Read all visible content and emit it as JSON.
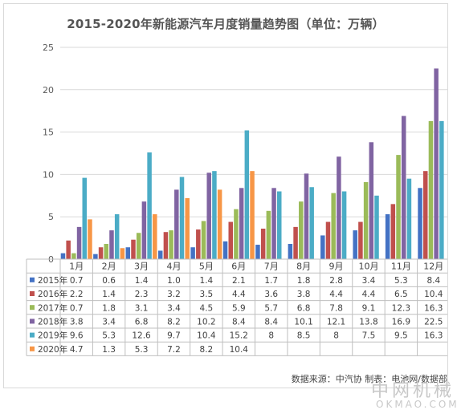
{
  "chart_data": {
    "type": "bar",
    "title": "2015-2020年新能源汽车月度销量趋势图（单位：万辆）",
    "xlabel": "",
    "ylabel": "",
    "ylim": [
      0,
      25
    ],
    "yticks": [
      0,
      5,
      10,
      15,
      20,
      25
    ],
    "grid": true,
    "legend": "table-below",
    "categories": [
      "1月",
      "2月",
      "3月",
      "4月",
      "5月",
      "6月",
      "7月",
      "8月",
      "9月",
      "10月",
      "11月",
      "12月"
    ],
    "series": [
      {
        "name": "2015年",
        "color": "#4472c4",
        "values": [
          0.7,
          0.6,
          1.4,
          1.0,
          1.4,
          2.1,
          1.7,
          1.8,
          2.8,
          3.4,
          5.3,
          8.4
        ]
      },
      {
        "name": "2016年",
        "color": "#c0504d",
        "values": [
          2.2,
          1.4,
          2.3,
          3.2,
          3.5,
          4.4,
          3.6,
          3.8,
          4.4,
          4.4,
          6.5,
          10.4
        ]
      },
      {
        "name": "2017年",
        "color": "#9bbb59",
        "values": [
          0.7,
          1.8,
          3.1,
          3.4,
          4.5,
          5.9,
          5.7,
          6.8,
          7.8,
          9.1,
          12.3,
          16.3
        ]
      },
      {
        "name": "2018年",
        "color": "#8064a2",
        "values": [
          3.8,
          3.4,
          6.8,
          8.2,
          10.2,
          8.4,
          8.4,
          10.1,
          12.1,
          13.8,
          16.9,
          22.5
        ]
      },
      {
        "name": "2019年",
        "color": "#4bacc6",
        "values": [
          9.6,
          5.3,
          12.6,
          9.7,
          10.4,
          15.2,
          8,
          8.5,
          8,
          7.5,
          9.5,
          16.3
        ]
      },
      {
        "name": "2020年",
        "color": "#f79646",
        "values": [
          4.7,
          1.3,
          5.3,
          7.2,
          8.2,
          10.4,
          null,
          null,
          null,
          null,
          null,
          null
        ]
      }
    ],
    "table_text": [
      [
        "0.7",
        "0.6",
        "1.4",
        "1.0",
        "1.4",
        "2.1",
        "1.7",
        "1.8",
        "2.8",
        "3.4",
        "5.3",
        "8.4"
      ],
      [
        "2.2",
        "1.4",
        "2.3",
        "3.2",
        "3.5",
        "4.4",
        "3.6",
        "3.8",
        "4.4",
        "4.4",
        "6.5",
        "10.4"
      ],
      [
        "0.7",
        "1.8",
        "3.1",
        "3.4",
        "4.5",
        "5.9",
        "5.7",
        "6.8",
        "7.8",
        "9.1",
        "12.3",
        "16.3"
      ],
      [
        "3.8",
        "3.4",
        "6.8",
        "8.2",
        "10.2",
        "8.4",
        "8.4",
        "10.1",
        "12.1",
        "13.8",
        "16.9",
        "22.5"
      ],
      [
        "9.6",
        "5.3",
        "12.6",
        "9.7",
        "10.4",
        "15.2",
        "8",
        "8.5",
        "8",
        "7.5",
        "9.5",
        "16.3"
      ],
      [
        "4.7",
        "1.3",
        "5.3",
        "7.2",
        "8.2",
        "10.4",
        "",
        "",
        "",
        "",
        "",
        ""
      ]
    ]
  },
  "footer": {
    "source": "数据来源：中汽协  制表：电池网/数据部"
  },
  "watermark": {
    "cn": "中网机械",
    "en": "OKMAO.COM"
  }
}
